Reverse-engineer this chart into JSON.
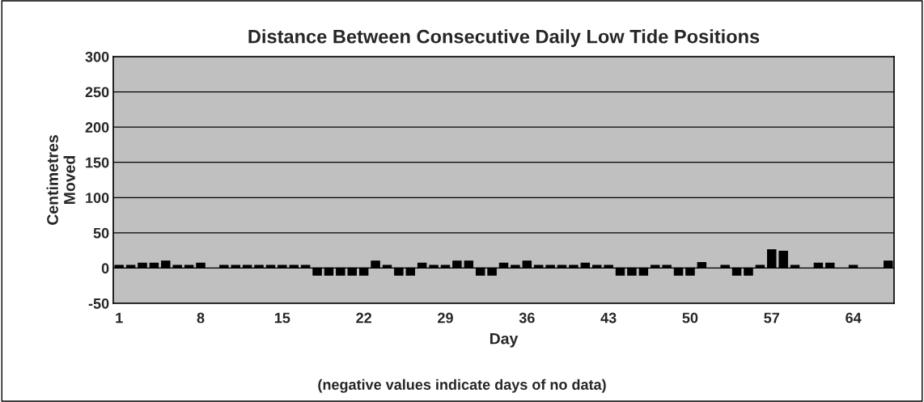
{
  "chart_data": {
    "type": "bar",
    "title": "Distance Between Consecutive Daily Low Tide Positions",
    "xlabel": "Day",
    "ylabel": "Centimetres\nMoved",
    "annotations": [
      "(negative values indicate days of no data)"
    ],
    "categories": [
      "1",
      null,
      null,
      null,
      null,
      null,
      null,
      "8",
      null,
      null,
      null,
      null,
      null,
      null,
      "15",
      null,
      null,
      null,
      null,
      null,
      null,
      "22",
      null,
      null,
      null,
      null,
      null,
      null,
      "29",
      null,
      null,
      null,
      null,
      null,
      null,
      "36",
      null,
      null,
      null,
      null,
      null,
      null,
      "43",
      null,
      null,
      null,
      null,
      null,
      null,
      "50",
      null,
      null,
      null,
      null,
      null,
      null,
      "57",
      null,
      null,
      null,
      null,
      null,
      null,
      "64",
      null,
      null,
      null
    ],
    "values": [
      4,
      4,
      7,
      7,
      10,
      4,
      4,
      7,
      null,
      4,
      4,
      4,
      4,
      4,
      4,
      4,
      4,
      -10,
      -10,
      -10,
      -10,
      -10,
      10,
      4,
      -10,
      -10,
      7,
      4,
      4,
      10,
      10,
      -10,
      -10,
      7,
      4,
      10,
      4,
      4,
      4,
      4,
      7,
      4,
      4,
      -10,
      -10,
      -10,
      4,
      4,
      -10,
      -10,
      8,
      null,
      4,
      -10,
      -10,
      4,
      26,
      24,
      4,
      null,
      7,
      7,
      null,
      4,
      null,
      null,
      10
    ],
    "color": "#000000",
    "ylim": [
      -50,
      300
    ],
    "yticks": [
      -50,
      0,
      50,
      100,
      150,
      200,
      250,
      300
    ],
    "grid": "y",
    "legend": false
  }
}
